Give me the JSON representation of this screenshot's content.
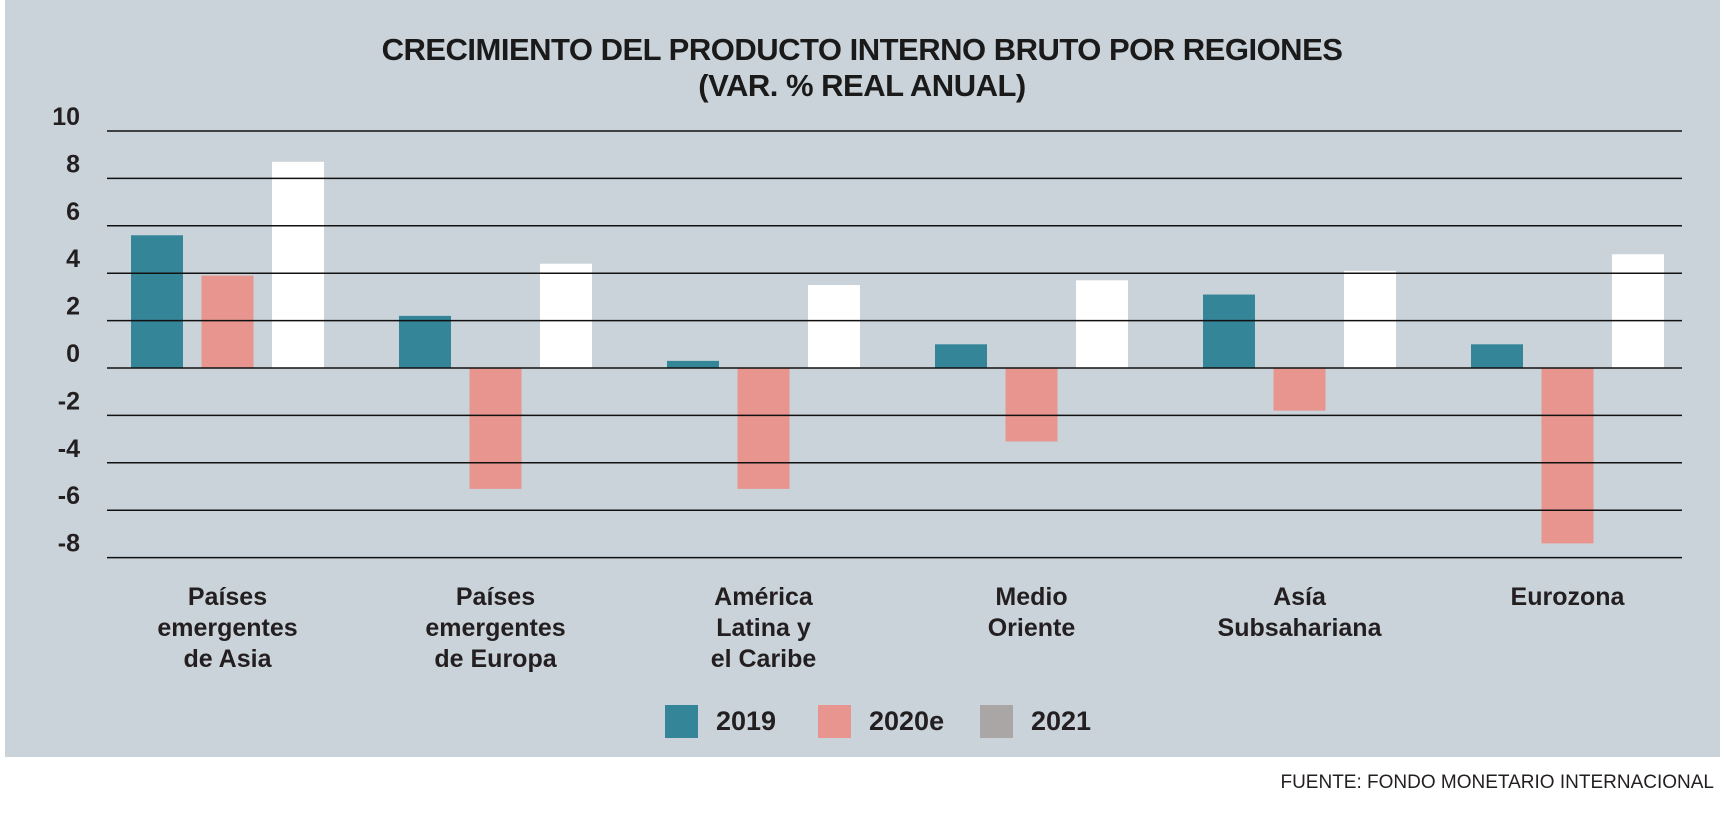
{
  "chart_data": {
    "type": "bar",
    "title": "CRECIMIENTO DEL PRODUCTO INTERNO BRUTO POR REGIONES",
    "subtitle": "(VAR. % REAL ANUAL)",
    "categories": [
      "Países emergentes de Asia",
      "Países emergentes de Europa",
      "América Latina y el Caribe",
      "Medio Oriente",
      "Asía Subsahariana",
      "Eurozona"
    ],
    "category_lines": [
      [
        "Países",
        "emergentes",
        "de Asia"
      ],
      [
        "Países",
        "emergentes",
        "de Europa"
      ],
      [
        "América",
        "Latina y",
        "el Caribe"
      ],
      [
        "Medio",
        "Oriente"
      ],
      [
        "Asía",
        "Subsahariana"
      ],
      [
        "Eurozona"
      ]
    ],
    "series": [
      {
        "name": "2019",
        "color": "#348598",
        "values": [
          5.6,
          2.2,
          0.3,
          1.0,
          3.1,
          1.0
        ]
      },
      {
        "name": "2020e",
        "color": "#e8948f",
        "values": [
          3.9,
          -5.1,
          -5.1,
          -3.1,
          -1.8,
          -7.4
        ]
      },
      {
        "name": "2021",
        "color": "#ffffff",
        "legend_color": "#aaa6a6",
        "values": [
          8.7,
          4.4,
          3.5,
          3.7,
          4.1,
          4.8
        ]
      }
    ],
    "ylim": [
      -8,
      10
    ],
    "yticks": [
      "10",
      "8",
      "6",
      "4",
      "2",
      "0",
      "-2",
      "-4",
      "-6",
      "-8"
    ],
    "grid": true,
    "legend_position": "bottom",
    "source": "FUENTE: FONDO MONETARIO INTERNACIONAL"
  }
}
